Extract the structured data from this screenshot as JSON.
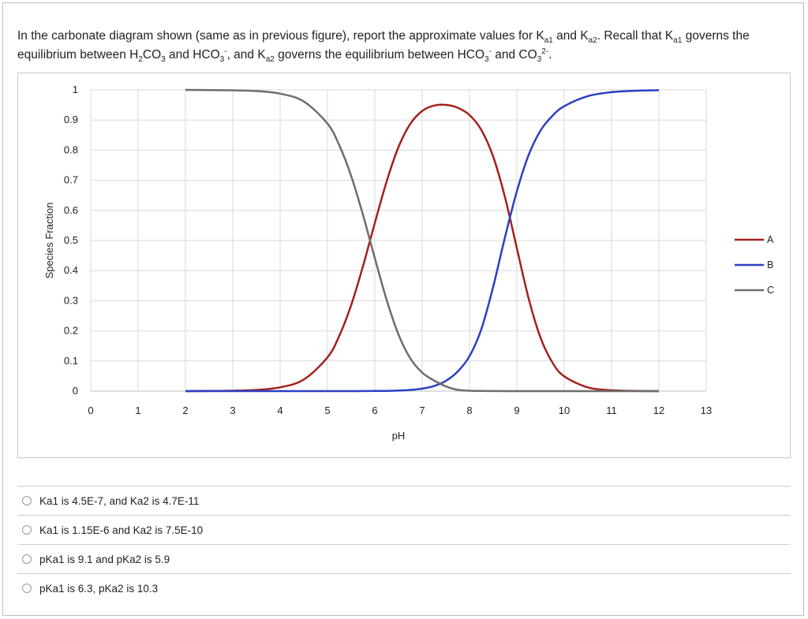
{
  "question": {
    "line1": "In the carbonate diagram shown (same as in previous figure), report the approximate values for K",
    "ka1_sub": "a1",
    "and_text": " and K",
    "ka2_sub": "a2",
    "line1_tail": ". Recall that K",
    "gov_sub": "a1",
    "line1_end": " governs the",
    "line2_a": "equilibrium between H",
    "h2_sub": "2",
    "line2_b": "CO",
    "co3_sub_a": "3",
    "line2_c": " and HCO",
    "hco3_sub": "3",
    "hco3_sup": "-",
    "line2_d": ", and K",
    "ka2_sub_b": "a2",
    "line2_e": " governs the equilibrium between HCO",
    "hco3_sub_b": "3",
    "hco3_sup_b": "-",
    "line2_f": " and CO",
    "co3_sub_b": "3",
    "co3_sup": "2-",
    "line2_g": "."
  },
  "options": [
    {
      "label": "Ka1 is 4.5E-7, and Ka2 is 4.7E-11"
    },
    {
      "label": "Ka1 is 1.15E-6 and Ka2 is 7.5E-10"
    },
    {
      "label": "pKa1 is 9.1 and pKa2 is 5.9"
    },
    {
      "label": "pKa1 is 6.3, pKa2 is 10.3"
    }
  ],
  "chart_data": {
    "type": "line",
    "title": "",
    "xlabel": "pH",
    "ylabel": "Species Fraction",
    "xlim": [
      0,
      13
    ],
    "ylim": [
      0,
      1
    ],
    "xticks": [
      0,
      1,
      2,
      3,
      4,
      5,
      6,
      7,
      8,
      9,
      10,
      11,
      12,
      13
    ],
    "yticks": [
      0,
      0.1,
      0.2,
      0.3,
      0.4,
      0.5,
      0.6,
      0.7,
      0.8,
      0.9,
      1
    ],
    "ytick_labels": [
      "0",
      "0.1",
      "0.2",
      "0.3",
      "0.4",
      "0.5",
      "0.6",
      "0.7",
      "0.8",
      "0.9",
      "1"
    ],
    "grid": true,
    "legend_position": "right",
    "x": [
      2,
      2.5,
      3,
      3.5,
      4,
      4.5,
      5,
      5.25,
      5.5,
      5.75,
      6,
      6.25,
      6.5,
      6.75,
      7,
      7.25,
      7.5,
      7.75,
      8,
      8.25,
      8.5,
      8.75,
      9,
      9.25,
      9.5,
      9.75,
      10,
      10.5,
      11,
      11.5,
      12
    ],
    "series": [
      {
        "name": "A",
        "color": "#a3211c",
        "values": [
          0.0001,
          0.0004,
          0.0013,
          0.004,
          0.0126,
          0.0384,
          0.1118,
          0.1837,
          0.2852,
          0.4144,
          0.5581,
          0.6962,
          0.8101,
          0.8874,
          0.9302,
          0.9478,
          0.9503,
          0.9409,
          0.9164,
          0.8669,
          0.7785,
          0.6434,
          0.4748,
          0.3073,
          0.1774,
          0.0953,
          0.0493,
          0.0123,
          0.003,
          0.0007,
          0.0001
        ]
      },
      {
        "name": "B",
        "color": "#2b3fc4",
        "values": [
          0,
          0,
          0,
          0,
          0,
          0,
          0,
          0.0001,
          0.0001,
          0.0002,
          0.0004,
          0.0008,
          0.0018,
          0.0039,
          0.0082,
          0.0168,
          0.0338,
          0.0647,
          0.1159,
          0.2055,
          0.3462,
          0.5111,
          0.6632,
          0.7843,
          0.8648,
          0.9137,
          0.9457,
          0.9794,
          0.9924,
          0.9972,
          0.999
        ]
      },
      {
        "name": "C",
        "color": "#6d6d6d",
        "values": [
          0.9999,
          0.9996,
          0.9987,
          0.996,
          0.9874,
          0.9616,
          0.8882,
          0.8162,
          0.7147,
          0.5854,
          0.4415,
          0.303,
          0.1881,
          0.1087,
          0.0616,
          0.0354,
          0.0159,
          0.0044,
          0.0012,
          0.0006,
          0.0003,
          0.0001,
          0,
          0,
          0,
          0,
          0,
          0,
          0,
          0,
          0
        ]
      }
    ]
  }
}
